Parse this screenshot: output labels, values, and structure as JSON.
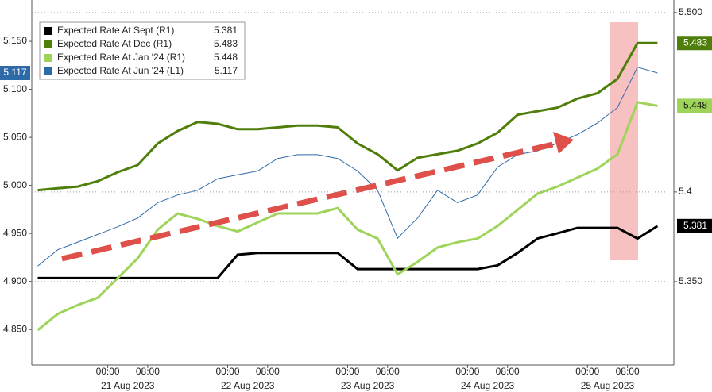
{
  "chart_data": {
    "type": "line",
    "legend": "upper left",
    "x": [
      "2023-08-20T10:00",
      "2023-08-20T14:00",
      "2023-08-20T18:00",
      "2023-08-20T22:00",
      "2023-08-21T02:00",
      "2023-08-21T06:00",
      "2023-08-21T10:00",
      "2023-08-21T14:00",
      "2023-08-21T18:00",
      "2023-08-21T22:00",
      "2023-08-22T02:00",
      "2023-08-22T06:00",
      "2023-08-22T10:00",
      "2023-08-22T14:00",
      "2023-08-22T18:00",
      "2023-08-22T22:00",
      "2023-08-23T02:00",
      "2023-08-23T06:00",
      "2023-08-23T10:00",
      "2023-08-23T14:00",
      "2023-08-23T18:00",
      "2023-08-23T22:00",
      "2023-08-24T02:00",
      "2023-08-24T06:00",
      "2023-08-24T10:00",
      "2023-08-24T14:00",
      "2023-08-24T18:00",
      "2023-08-24T22:00",
      "2023-08-25T02:00",
      "2023-08-25T06:00",
      "2023-08-25T10:00",
      "2023-08-25T14:00"
    ],
    "xlim": [
      "2023-08-20T08:48",
      "2023-08-25T17:17"
    ],
    "xticks": [
      {
        "value": "2023-08-21T00:00",
        "label": "00:00"
      },
      {
        "value": "2023-08-21T08:00",
        "label": "08:00"
      },
      {
        "value": "2023-08-22T00:00",
        "label": "00:00"
      },
      {
        "value": "2023-08-22T08:00",
        "label": "08:00"
      },
      {
        "value": "2023-08-23T00:00",
        "label": "00:00"
      },
      {
        "value": "2023-08-23T08:00",
        "label": "08:00"
      },
      {
        "value": "2023-08-24T00:00",
        "label": "00:00"
      },
      {
        "value": "2023-08-24T08:00",
        "label": "08:00"
      },
      {
        "value": "2023-08-25T00:00",
        "label": "00:00"
      },
      {
        "value": "2023-08-25T08:00",
        "label": "08:00"
      }
    ],
    "x_date_labels": [
      "21 Aug 2023",
      "22 Aug 2023",
      "23 Aug 2023",
      "24 Aug 2023",
      "25 Aug 2023"
    ],
    "ylim": [
      4.813,
      5.193
    ],
    "yticks": [
      {
        "value": 4.85,
        "label": "4.850"
      },
      {
        "value": 4.9,
        "label": "4.900"
      },
      {
        "value": 4.95,
        "label": "4.950"
      },
      {
        "value": 5.0,
        "label": "5.000"
      },
      {
        "value": 5.05,
        "label": "5.050"
      },
      {
        "value": 5.1,
        "label": "5.100"
      },
      {
        "value": 5.15,
        "label": "5.150"
      }
    ],
    "y2lim": [
      5.3035,
      5.507
    ],
    "y2ticks": [
      {
        "value": 5.35,
        "label": "5.350"
      },
      5.4,
      {
        "value": 5.5,
        "label": "5.500"
      }
    ],
    "series": [
      {
        "name": "Expected Rate At Sept (R1)",
        "color": "#000000",
        "axis": "y2",
        "values": [
          5.352,
          5.352,
          5.352,
          5.352,
          5.352,
          5.352,
          5.352,
          5.352,
          5.352,
          5.352,
          5.365,
          5.366,
          5.366,
          5.366,
          5.366,
          5.366,
          5.357,
          5.357,
          5.357,
          5.357,
          5.357,
          5.357,
          5.357,
          5.359,
          5.366,
          5.374,
          5.377,
          5.38,
          5.38,
          5.38,
          5.374,
          5.381
        ]
      },
      {
        "name": "Expected Rate At Dec (R1)",
        "color": "#4f7f0a",
        "axis": "y2",
        "values": [
          5.401,
          5.402,
          5.403,
          5.406,
          5.411,
          5.415,
          5.427,
          5.434,
          5.439,
          5.438,
          5.435,
          5.435,
          5.436,
          5.437,
          5.437,
          5.436,
          5.427,
          5.421,
          5.412,
          5.419,
          5.421,
          5.423,
          5.427,
          5.433,
          5.443,
          5.445,
          5.447,
          5.452,
          5.455,
          5.463,
          5.483,
          5.483
        ]
      },
      {
        "name": "Expected Rate At Jan '24 (R1)",
        "color": "#9fd45a",
        "axis": "y2",
        "values": [
          5.323,
          5.332,
          5.337,
          5.341,
          5.352,
          5.363,
          5.379,
          5.388,
          5.385,
          5.381,
          5.378,
          5.383,
          5.388,
          5.388,
          5.388,
          5.391,
          5.379,
          5.374,
          5.354,
          5.361,
          5.369,
          5.372,
          5.374,
          5.381,
          5.39,
          5.399,
          5.403,
          5.408,
          5.413,
          5.421,
          5.45,
          5.448
        ]
      },
      {
        "name": "Expected Rate At Jun '24 (L1)",
        "color": "#2f6aa8",
        "axis": "y",
        "values": [
          4.916,
          4.933,
          4.941,
          4.949,
          4.957,
          4.966,
          4.982,
          4.99,
          4.995,
          5.007,
          5.011,
          5.015,
          5.028,
          5.032,
          5.032,
          5.028,
          5.015,
          4.995,
          4.945,
          4.966,
          4.995,
          4.982,
          4.99,
          5.019,
          5.032,
          5.036,
          5.044,
          5.053,
          5.065,
          5.081,
          5.123,
          5.117
        ]
      }
    ]
  }
}
